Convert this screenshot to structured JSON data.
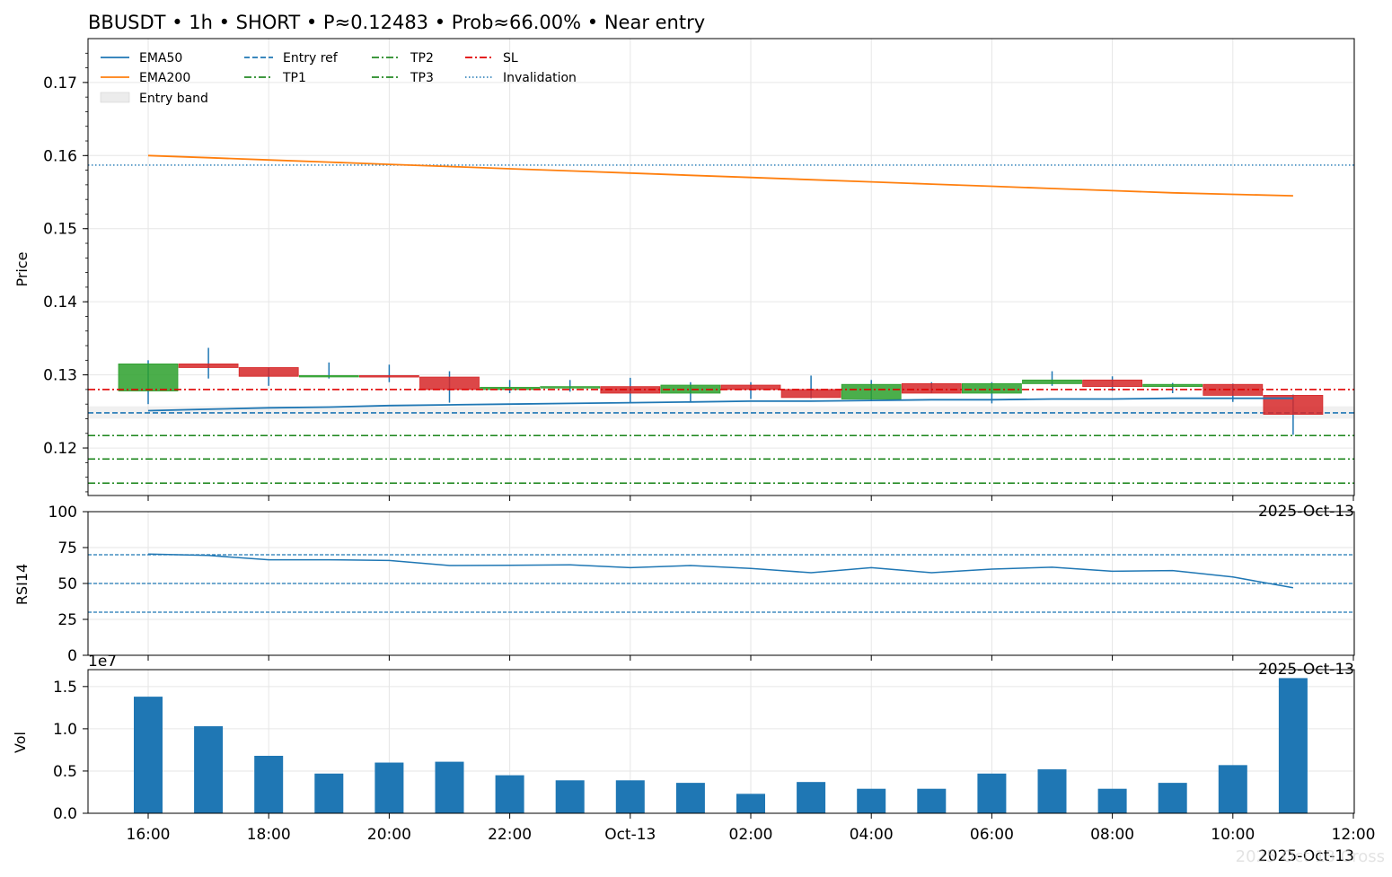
{
  "title": "BBUSDT • 1h • SHORT • P≈0.12483 • Prob≈66.00% • Near entry",
  "watermark": "2025 Oct 13 Cross",
  "colors": {
    "up": "#2ca02c",
    "down": "#d62728",
    "ema50": "#1f77b4",
    "ema200": "#ff7f0e",
    "entry": "#1f77b4",
    "tp": "#007700",
    "sl": "#e00000",
    "volume": "#1f77b4",
    "rsi": "#1f77b4"
  },
  "chart_data": [
    {
      "type": "candlestick",
      "ylabel": "Price",
      "ylim": [
        0.1135,
        0.176
      ],
      "yticks": [
        "0.12",
        "0.13",
        "0.14",
        "0.15",
        "0.16",
        "0.17"
      ],
      "x_ticks": [
        "16:00",
        "18:00",
        "20:00",
        "22:00",
        "Oct-13",
        "02:00",
        "04:00",
        "06:00",
        "08:00",
        "10:00",
        "12:00"
      ],
      "x_corner_label": "2025-Oct-13",
      "candles": [
        {
          "t": "16:00",
          "o": 0.1278,
          "h": 0.132,
          "l": 0.126,
          "c": 0.1315
        },
        {
          "t": "17:00",
          "o": 0.1315,
          "h": 0.1337,
          "l": 0.1295,
          "c": 0.131
        },
        {
          "t": "18:00",
          "o": 0.131,
          "h": 0.131,
          "l": 0.1285,
          "c": 0.1298
        },
        {
          "t": "19:00",
          "o": 0.1298,
          "h": 0.1317,
          "l": 0.1295,
          "c": 0.1299
        },
        {
          "t": "20:00",
          "o": 0.1299,
          "h": 0.1314,
          "l": 0.129,
          "c": 0.1297
        },
        {
          "t": "21:00",
          "o": 0.1297,
          "h": 0.1305,
          "l": 0.1262,
          "c": 0.128
        },
        {
          "t": "22:00",
          "o": 0.128,
          "h": 0.1293,
          "l": 0.1275,
          "c": 0.1283
        },
        {
          "t": "23:00",
          "o": 0.1282,
          "h": 0.1293,
          "l": 0.1277,
          "c": 0.1284
        },
        {
          "t": "00:00",
          "o": 0.1284,
          "h": 0.1296,
          "l": 0.1262,
          "c": 0.1275
        },
        {
          "t": "01:00",
          "o": 0.1275,
          "h": 0.129,
          "l": 0.1263,
          "c": 0.1286
        },
        {
          "t": "02:00",
          "o": 0.1286,
          "h": 0.129,
          "l": 0.1267,
          "c": 0.128
        },
        {
          "t": "03:00",
          "o": 0.128,
          "h": 0.1299,
          "l": 0.1268,
          "c": 0.1269
        },
        {
          "t": "04:00",
          "o": 0.1267,
          "h": 0.1293,
          "l": 0.1265,
          "c": 0.1287
        },
        {
          "t": "05:00",
          "o": 0.1288,
          "h": 0.129,
          "l": 0.1275,
          "c": 0.1275
        },
        {
          "t": "06:00",
          "o": 0.1275,
          "h": 0.129,
          "l": 0.1261,
          "c": 0.1288
        },
        {
          "t": "07:00",
          "o": 0.1288,
          "h": 0.1305,
          "l": 0.1285,
          "c": 0.1293
        },
        {
          "t": "08:00",
          "o": 0.1293,
          "h": 0.1298,
          "l": 0.1278,
          "c": 0.1284
        },
        {
          "t": "09:00",
          "o": 0.1284,
          "h": 0.1289,
          "l": 0.1275,
          "c": 0.1287
        },
        {
          "t": "10:00",
          "o": 0.1287,
          "h": 0.1288,
          "l": 0.1263,
          "c": 0.1272
        },
        {
          "t": "11:00",
          "o": 0.1272,
          "h": 0.1273,
          "l": 0.1218,
          "c": 0.1246
        }
      ],
      "ema50": [
        0.1251,
        0.1253,
        0.1255,
        0.1256,
        0.1258,
        0.1259,
        0.126,
        0.1261,
        0.1262,
        0.1263,
        0.1264,
        0.1264,
        0.1265,
        0.1266,
        0.1266,
        0.1267,
        0.1267,
        0.1268,
        0.1268,
        0.1268
      ],
      "ema200": [
        0.16,
        0.1597,
        0.1594,
        0.1591,
        0.1588,
        0.1585,
        0.1582,
        0.1579,
        0.1576,
        0.1573,
        0.157,
        0.1567,
        0.1564,
        0.1561,
        0.1558,
        0.1555,
        0.1552,
        0.1549,
        0.1547,
        0.1545
      ],
      "levels": {
        "entry_ref": 0.1248,
        "entry_band": [
          0.124,
          0.1257
        ],
        "sl": 0.128,
        "tp1": 0.1217,
        "tp2": 0.1185,
        "tp3": 0.1152,
        "invalidation": 0.1587
      },
      "legend": {
        "placement": "top-left",
        "entries": [
          "EMA50",
          "EMA200",
          "Entry band",
          "Entry ref",
          "TP1",
          "TP2",
          "TP3",
          "SL",
          "Invalidation"
        ]
      }
    },
    {
      "type": "line",
      "ylabel": "RSI14",
      "ylim": [
        0,
        100
      ],
      "yticks": [
        "0",
        "25",
        "50",
        "75",
        "100"
      ],
      "x_corner_label": "2025-Oct-13",
      "values": [
        70.5,
        69.5,
        66.5,
        66.5,
        66.0,
        62.5,
        62.7,
        63.0,
        61.0,
        62.5,
        60.5,
        57.5,
        61.0,
        57.5,
        60.0,
        61.3,
        58.5,
        59.0,
        54.5,
        47.0
      ],
      "ref_lines": [
        70,
        50,
        30
      ]
    },
    {
      "type": "bar",
      "ylabel": "Vol",
      "ylim": [
        0,
        17000000
      ],
      "yticks": [
        "0.0",
        "0.5",
        "1.0",
        "1.5"
      ],
      "scale_label": "1e7",
      "x_corner_label": "2025-Oct-13",
      "values": [
        13800000,
        10300000,
        6800000,
        4700000,
        6000000,
        6100000,
        4500000,
        3900000,
        3900000,
        3600000,
        2300000,
        3700000,
        2900000,
        2900000,
        4700000,
        5200000,
        2900000,
        3600000,
        5700000,
        16000000
      ]
    }
  ]
}
